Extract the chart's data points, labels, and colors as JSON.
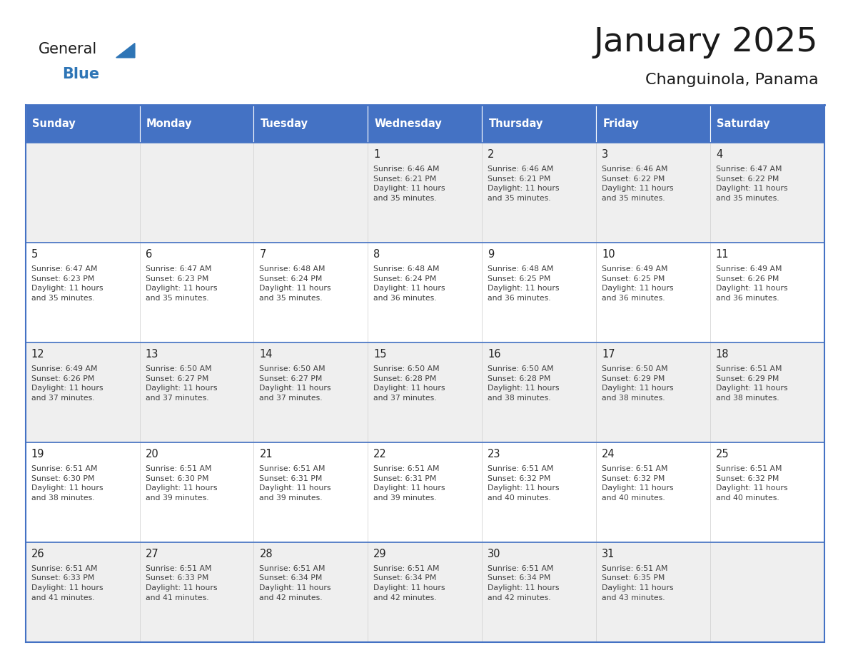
{
  "title": "January 2025",
  "subtitle": "Changuinola, Panama",
  "days_of_week": [
    "Sunday",
    "Monday",
    "Tuesday",
    "Wednesday",
    "Thursday",
    "Friday",
    "Saturday"
  ],
  "header_bg": "#4472C4",
  "header_text": "#FFFFFF",
  "cell_bg_odd": "#EFEFEF",
  "cell_bg_even": "#FFFFFF",
  "border_color": "#4472C4",
  "text_color": "#404040",
  "day_number_color": "#222222",
  "title_color": "#1a1a1a",
  "logo_black": "#1a1a1a",
  "logo_blue": "#2E75B6",
  "triangle_blue": "#2E75B6",
  "calendar_data": [
    [
      {
        "day": "",
        "info": ""
      },
      {
        "day": "",
        "info": ""
      },
      {
        "day": "",
        "info": ""
      },
      {
        "day": "1",
        "info": "Sunrise: 6:46 AM\nSunset: 6:21 PM\nDaylight: 11 hours\nand 35 minutes."
      },
      {
        "day": "2",
        "info": "Sunrise: 6:46 AM\nSunset: 6:21 PM\nDaylight: 11 hours\nand 35 minutes."
      },
      {
        "day": "3",
        "info": "Sunrise: 6:46 AM\nSunset: 6:22 PM\nDaylight: 11 hours\nand 35 minutes."
      },
      {
        "day": "4",
        "info": "Sunrise: 6:47 AM\nSunset: 6:22 PM\nDaylight: 11 hours\nand 35 minutes."
      }
    ],
    [
      {
        "day": "5",
        "info": "Sunrise: 6:47 AM\nSunset: 6:23 PM\nDaylight: 11 hours\nand 35 minutes."
      },
      {
        "day": "6",
        "info": "Sunrise: 6:47 AM\nSunset: 6:23 PM\nDaylight: 11 hours\nand 35 minutes."
      },
      {
        "day": "7",
        "info": "Sunrise: 6:48 AM\nSunset: 6:24 PM\nDaylight: 11 hours\nand 35 minutes."
      },
      {
        "day": "8",
        "info": "Sunrise: 6:48 AM\nSunset: 6:24 PM\nDaylight: 11 hours\nand 36 minutes."
      },
      {
        "day": "9",
        "info": "Sunrise: 6:48 AM\nSunset: 6:25 PM\nDaylight: 11 hours\nand 36 minutes."
      },
      {
        "day": "10",
        "info": "Sunrise: 6:49 AM\nSunset: 6:25 PM\nDaylight: 11 hours\nand 36 minutes."
      },
      {
        "day": "11",
        "info": "Sunrise: 6:49 AM\nSunset: 6:26 PM\nDaylight: 11 hours\nand 36 minutes."
      }
    ],
    [
      {
        "day": "12",
        "info": "Sunrise: 6:49 AM\nSunset: 6:26 PM\nDaylight: 11 hours\nand 37 minutes."
      },
      {
        "day": "13",
        "info": "Sunrise: 6:50 AM\nSunset: 6:27 PM\nDaylight: 11 hours\nand 37 minutes."
      },
      {
        "day": "14",
        "info": "Sunrise: 6:50 AM\nSunset: 6:27 PM\nDaylight: 11 hours\nand 37 minutes."
      },
      {
        "day": "15",
        "info": "Sunrise: 6:50 AM\nSunset: 6:28 PM\nDaylight: 11 hours\nand 37 minutes."
      },
      {
        "day": "16",
        "info": "Sunrise: 6:50 AM\nSunset: 6:28 PM\nDaylight: 11 hours\nand 38 minutes."
      },
      {
        "day": "17",
        "info": "Sunrise: 6:50 AM\nSunset: 6:29 PM\nDaylight: 11 hours\nand 38 minutes."
      },
      {
        "day": "18",
        "info": "Sunrise: 6:51 AM\nSunset: 6:29 PM\nDaylight: 11 hours\nand 38 minutes."
      }
    ],
    [
      {
        "day": "19",
        "info": "Sunrise: 6:51 AM\nSunset: 6:30 PM\nDaylight: 11 hours\nand 38 minutes."
      },
      {
        "day": "20",
        "info": "Sunrise: 6:51 AM\nSunset: 6:30 PM\nDaylight: 11 hours\nand 39 minutes."
      },
      {
        "day": "21",
        "info": "Sunrise: 6:51 AM\nSunset: 6:31 PM\nDaylight: 11 hours\nand 39 minutes."
      },
      {
        "day": "22",
        "info": "Sunrise: 6:51 AM\nSunset: 6:31 PM\nDaylight: 11 hours\nand 39 minutes."
      },
      {
        "day": "23",
        "info": "Sunrise: 6:51 AM\nSunset: 6:32 PM\nDaylight: 11 hours\nand 40 minutes."
      },
      {
        "day": "24",
        "info": "Sunrise: 6:51 AM\nSunset: 6:32 PM\nDaylight: 11 hours\nand 40 minutes."
      },
      {
        "day": "25",
        "info": "Sunrise: 6:51 AM\nSunset: 6:32 PM\nDaylight: 11 hours\nand 40 minutes."
      }
    ],
    [
      {
        "day": "26",
        "info": "Sunrise: 6:51 AM\nSunset: 6:33 PM\nDaylight: 11 hours\nand 41 minutes."
      },
      {
        "day": "27",
        "info": "Sunrise: 6:51 AM\nSunset: 6:33 PM\nDaylight: 11 hours\nand 41 minutes."
      },
      {
        "day": "28",
        "info": "Sunrise: 6:51 AM\nSunset: 6:34 PM\nDaylight: 11 hours\nand 42 minutes."
      },
      {
        "day": "29",
        "info": "Sunrise: 6:51 AM\nSunset: 6:34 PM\nDaylight: 11 hours\nand 42 minutes."
      },
      {
        "day": "30",
        "info": "Sunrise: 6:51 AM\nSunset: 6:34 PM\nDaylight: 11 hours\nand 42 minutes."
      },
      {
        "day": "31",
        "info": "Sunrise: 6:51 AM\nSunset: 6:35 PM\nDaylight: 11 hours\nand 43 minutes."
      },
      {
        "day": "",
        "info": ""
      }
    ]
  ]
}
